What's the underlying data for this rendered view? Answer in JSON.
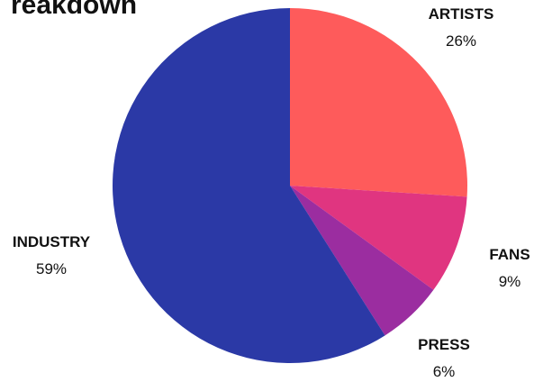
{
  "chart_data": {
    "type": "pie",
    "title": "reakdown",
    "slices": [
      {
        "label": "ARTISTS",
        "value": 26,
        "display": "26%",
        "color": "#fe5b5b"
      },
      {
        "label": "FANS",
        "value": 9,
        "display": "9%",
        "color": "#e03580"
      },
      {
        "label": "PRESS",
        "value": 6,
        "display": "6%",
        "color": "#9b2da0"
      },
      {
        "label": "INDUSTRY",
        "value": 59,
        "display": "59%",
        "color": "#2b39a6"
      }
    ],
    "start_direction": "top",
    "order": "clockwise"
  }
}
